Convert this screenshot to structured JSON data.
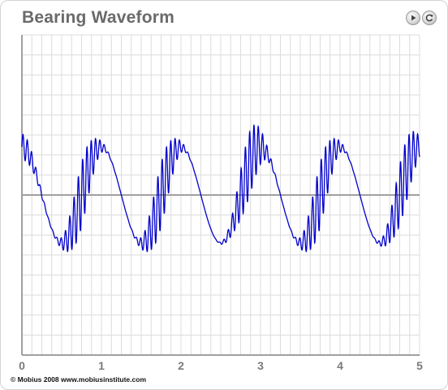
{
  "window": {
    "title": "Bearing Waveform",
    "copyright": "© Mobius 2008 www.mobiusinstitute.com"
  },
  "controls": {
    "play_icon": "play-icon",
    "reset_icon": "reset-icon"
  },
  "chart_data": {
    "type": "line",
    "title": "Bearing Waveform",
    "xlabel": "",
    "ylabel": "",
    "x_ticks": [
      "0",
      "1",
      "2",
      "3",
      "4",
      "5"
    ],
    "xlim": [
      0,
      5
    ],
    "ylim": [
      -1.0,
      1.0
    ],
    "grid": true,
    "legend": "none",
    "series": [
      {
        "name": "",
        "color": "#0000cc",
        "carrier": {
          "amplitude": 0.3,
          "frequency": 1.0,
          "phase_deg": 90
        },
        "impacts": [
          {
            "center_x": 0.0,
            "peak_amp": 0.08,
            "frequency": 18.5
          },
          {
            "center_x": 0.75,
            "peak_amp": 0.2,
            "frequency": 18.5
          },
          {
            "center_x": 1.75,
            "peak_amp": 0.2,
            "frequency": 18.5
          },
          {
            "center_x": 2.85,
            "peak_amp": 0.2,
            "frequency": 18.5
          },
          {
            "center_x": 3.75,
            "peak_amp": 0.2,
            "frequency": 18.5
          },
          {
            "center_x": 4.8,
            "peak_amp": 0.2,
            "frequency": 18.5
          }
        ]
      }
    ]
  }
}
